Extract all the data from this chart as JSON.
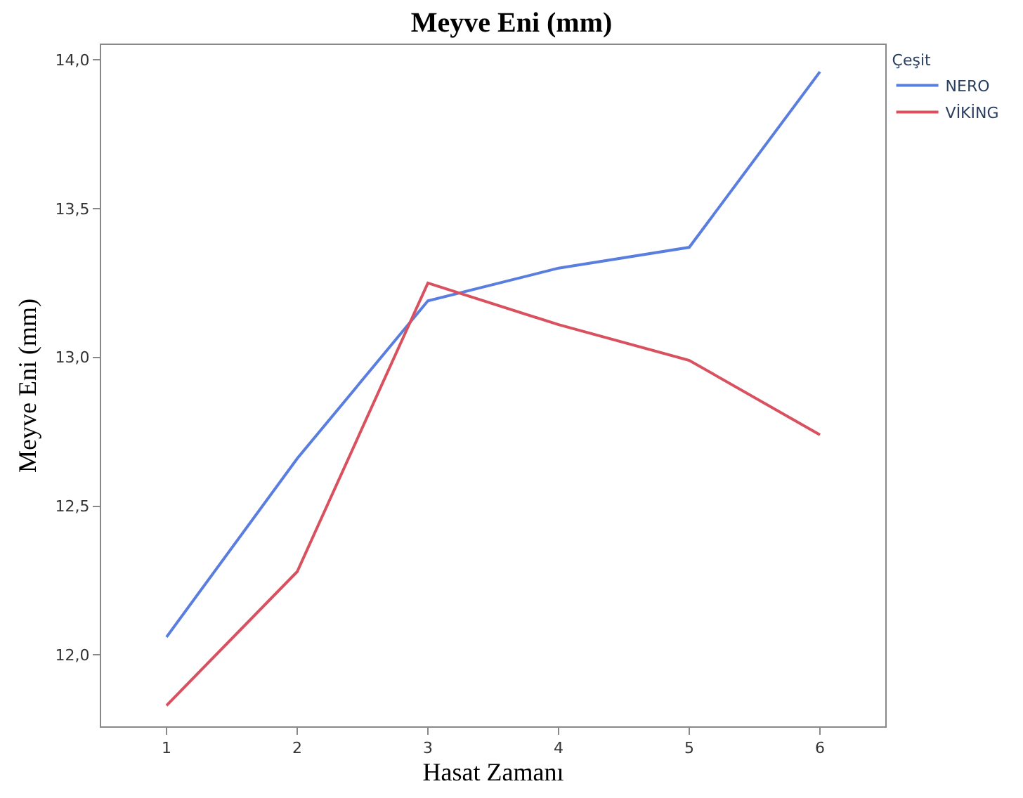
{
  "chart_data": {
    "type": "line",
    "title": "Meyve Eni (mm)",
    "xlabel": "Hasat Zamanı",
    "ylabel": "Meyve Eni (mm)",
    "legend_title": "Çeşit",
    "legend": "top right",
    "marker": "none",
    "line_style": "solid",
    "x": [
      1,
      2,
      3,
      4,
      5,
      6
    ],
    "series": [
      {
        "name": "NERO",
        "color": "#5a7ee0",
        "values": [
          12.06,
          12.66,
          13.19,
          13.3,
          13.37,
          13.96
        ]
      },
      {
        "name": "VİKİNG",
        "color": "#d9505f",
        "values": [
          11.83,
          12.28,
          13.25,
          13.11,
          12.99,
          12.74
        ]
      }
    ],
    "xlim": [
      0.5,
      6.5
    ],
    "xticks": [
      1,
      2,
      3,
      4,
      5,
      6
    ],
    "ylim": [
      11.76,
      14.05
    ],
    "yticks": [
      {
        "value": 12,
        "label": "12,0"
      },
      {
        "value": 12.5,
        "label": "12,5"
      },
      {
        "value": 13,
        "label": "13,0"
      },
      {
        "value": 13.5,
        "label": "13,5"
      },
      {
        "value": 14,
        "label": "14,0"
      }
    ]
  }
}
